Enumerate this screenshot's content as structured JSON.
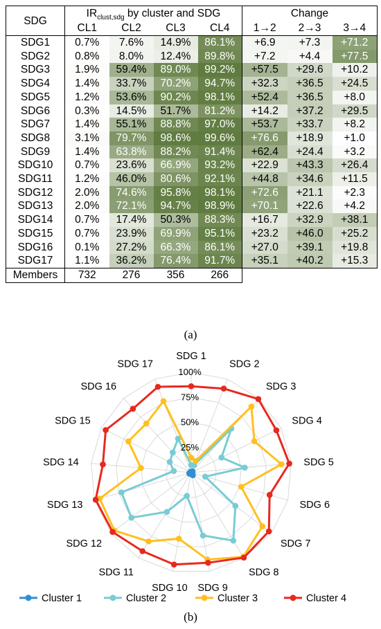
{
  "panel_a_label": "(a)",
  "panel_b_label": "(b)",
  "chart_data": [
    {
      "type": "table",
      "headers": {
        "sdg": "SDG",
        "ir_main": "IR",
        "ir_sub": "clust,sdg",
        "ir_rest": " by cluster and SDG",
        "change": "Change",
        "clusters": [
          "CL1",
          "CL2",
          "CL3",
          "CL4"
        ],
        "changes": [
          "1→2",
          "2→3",
          "3→4"
        ]
      },
      "rows": [
        {
          "sdg": "SDG1",
          "cl": [
            "0.7%",
            "7.6%",
            "14.9%",
            "86.1%"
          ],
          "v": [
            0.7,
            7.6,
            14.9,
            86.1
          ],
          "ch": [
            "+6.9",
            "+7.3",
            "+71.2"
          ],
          "cv": [
            6.9,
            7.3,
            71.2
          ]
        },
        {
          "sdg": "SDG2",
          "cl": [
            "0.8%",
            "8.0%",
            "12.4%",
            "89.8%"
          ],
          "v": [
            0.8,
            8.0,
            12.4,
            89.8
          ],
          "ch": [
            "+7.2",
            "+4.4",
            "+77.5"
          ],
          "cv": [
            7.2,
            4.4,
            77.5
          ]
        },
        {
          "sdg": "SDG3",
          "cl": [
            "1.9%",
            "59.4%",
            "89.0%",
            "99.2%"
          ],
          "v": [
            1.9,
            59.4,
            89.0,
            99.2
          ],
          "ch": [
            "+57.5",
            "+29.6",
            "+10.2"
          ],
          "cv": [
            57.5,
            29.6,
            10.2
          ]
        },
        {
          "sdg": "SDG4",
          "cl": [
            "1.4%",
            "33.7%",
            "70.2%",
            "94.7%"
          ],
          "v": [
            1.4,
            33.7,
            70.2,
            94.7
          ],
          "ch": [
            "+32.3",
            "+36.5",
            "+24.5"
          ],
          "cv": [
            32.3,
            36.5,
            24.5
          ]
        },
        {
          "sdg": "SDG5",
          "cl": [
            "1.2%",
            "53.6%",
            "90.2%",
            "98.1%"
          ],
          "v": [
            1.2,
            53.6,
            90.2,
            98.1
          ],
          "ch": [
            "+52.4",
            "+36.5",
            "+8.0"
          ],
          "cv": [
            52.4,
            36.5,
            8.0
          ]
        },
        {
          "sdg": "SDG6",
          "cl": [
            "0.3%",
            "14.5%",
            "51.7%",
            "81.2%"
          ],
          "v": [
            0.3,
            14.5,
            51.7,
            81.2
          ],
          "ch": [
            "+14.2",
            "+37.2",
            "+29.5"
          ],
          "cv": [
            14.2,
            37.2,
            29.5
          ]
        },
        {
          "sdg": "SDG7",
          "cl": [
            "1.4%",
            "55.1%",
            "88.8%",
            "97.0%"
          ],
          "v": [
            1.4,
            55.1,
            88.8,
            97.0
          ],
          "ch": [
            "+53.7",
            "+33.7",
            "+8.2"
          ],
          "cv": [
            53.7,
            33.7,
            8.2
          ]
        },
        {
          "sdg": "SDG8",
          "cl": [
            "3.1%",
            "79.7%",
            "98.6%",
            "99.6%"
          ],
          "v": [
            3.1,
            79.7,
            98.6,
            99.6
          ],
          "ch": [
            "+76.6",
            "+18.9",
            "+1.0"
          ],
          "cv": [
            76.6,
            18.9,
            1.0
          ]
        },
        {
          "sdg": "SDG9",
          "cl": [
            "1.4%",
            "63.8%",
            "88.2%",
            "91.4%"
          ],
          "v": [
            1.4,
            63.8,
            88.2,
            91.4
          ],
          "ch": [
            "+62.4",
            "+24.4",
            "+3.2"
          ],
          "cv": [
            62.4,
            24.4,
            3.2
          ]
        },
        {
          "sdg": "SDG10",
          "cl": [
            "0.7%",
            "23.6%",
            "66.9%",
            "93.2%"
          ],
          "v": [
            0.7,
            23.6,
            66.9,
            93.2
          ],
          "ch": [
            "+22.9",
            "+43.3",
            "+26.4"
          ],
          "cv": [
            22.9,
            43.3,
            26.4
          ]
        },
        {
          "sdg": "SDG11",
          "cl": [
            "1.2%",
            "46.0%",
            "80.6%",
            "92.1%"
          ],
          "v": [
            1.2,
            46.0,
            80.6,
            92.1
          ],
          "ch": [
            "+44.8",
            "+34.6",
            "+11.5"
          ],
          "cv": [
            44.8,
            34.6,
            11.5
          ]
        },
        {
          "sdg": "SDG12",
          "cl": [
            "2.0%",
            "74.6%",
            "95.8%",
            "98.1%"
          ],
          "v": [
            2.0,
            74.6,
            95.8,
            98.1
          ],
          "ch": [
            "+72.6",
            "+21.1",
            "+2.3"
          ],
          "cv": [
            72.6,
            21.1,
            2.3
          ]
        },
        {
          "sdg": "SDG13",
          "cl": [
            "2.0%",
            "72.1%",
            "94.7%",
            "98.9%"
          ],
          "v": [
            2.0,
            72.1,
            94.7,
            98.9
          ],
          "ch": [
            "+70.1",
            "+22.6",
            "+4.2"
          ],
          "cv": [
            70.1,
            22.6,
            4.2
          ]
        },
        {
          "sdg": "SDG14",
          "cl": [
            "0.7%",
            "17.4%",
            "50.3%",
            "88.3%"
          ],
          "v": [
            0.7,
            17.4,
            50.3,
            88.3
          ],
          "ch": [
            "+16.7",
            "+32.9",
            "+38.1"
          ],
          "cv": [
            16.7,
            32.9,
            38.1
          ]
        },
        {
          "sdg": "SDG15",
          "cl": [
            "0.7%",
            "23.9%",
            "69.9%",
            "95.1%"
          ],
          "v": [
            0.7,
            23.9,
            69.9,
            95.1
          ],
          "ch": [
            "+23.2",
            "+46.0",
            "+25.2"
          ],
          "cv": [
            23.2,
            46.0,
            25.2
          ]
        },
        {
          "sdg": "SDG16",
          "cl": [
            "0.1%",
            "27.2%",
            "66.3%",
            "86.1%"
          ],
          "v": [
            0.1,
            27.2,
            66.3,
            86.1
          ],
          "ch": [
            "+27.0",
            "+39.1",
            "+19.8"
          ],
          "cv": [
            27.0,
            39.1,
            19.8
          ]
        },
        {
          "sdg": "SDG17",
          "cl": [
            "1.1%",
            "36.2%",
            "76.4%",
            "91.7%"
          ],
          "v": [
            1.1,
            36.2,
            76.4,
            91.7
          ],
          "ch": [
            "+35.1",
            "+40.2",
            "+15.3"
          ],
          "cv": [
            35.1,
            40.2,
            15.3
          ]
        }
      ],
      "members": {
        "label": "Members",
        "values": [
          "732",
          "276",
          "356",
          "266"
        ]
      },
      "colors": {
        "low": "#ffffff",
        "high": "#5e7a3a"
      }
    },
    {
      "type": "radar",
      "categories": [
        "SDG 1",
        "SDG 2",
        "SDG 3",
        "SDG 4",
        "SDG 5",
        "SDG 6",
        "SDG 7",
        "SDG 8",
        "SDG 9",
        "SDG 10",
        "SDG 11",
        "SDG 12",
        "SDG 13",
        "SDG 14",
        "SDG 15",
        "SDG 16",
        "SDG 17"
      ],
      "ticks": [
        "25%",
        "50%",
        "75%",
        "100%"
      ],
      "tick_values": [
        25,
        50,
        75,
        100
      ],
      "range": [
        0,
        100
      ],
      "grid": true,
      "legend_position": "bottom",
      "series": [
        {
          "name": "Cluster 1",
          "color": "#2e8fd4",
          "values": [
            0.7,
            0.8,
            1.9,
            1.4,
            1.2,
            0.3,
            1.4,
            3.1,
            1.4,
            0.7,
            1.2,
            2.0,
            2.0,
            0.7,
            0.7,
            0.1,
            1.1
          ]
        },
        {
          "name": "Cluster 2",
          "color": "#78ccd4",
          "values": [
            7.6,
            8.0,
            59.4,
            33.7,
            53.6,
            14.5,
            55.1,
            79.7,
            63.8,
            23.6,
            46.0,
            74.6,
            72.1,
            17.4,
            23.9,
            27.2,
            36.2
          ]
        },
        {
          "name": "Cluster 3",
          "color": "#ffbf1f",
          "values": [
            14.9,
            12.4,
            89.0,
            70.2,
            90.2,
            51.7,
            88.8,
            98.6,
            88.2,
            66.9,
            80.6,
            95.8,
            94.7,
            50.3,
            69.9,
            66.3,
            76.4
          ]
        },
        {
          "name": "Cluster 4",
          "color": "#e8281e",
          "values": [
            86.1,
            89.8,
            99.2,
            94.7,
            98.1,
            81.2,
            97.0,
            99.6,
            91.4,
            93.2,
            92.1,
            98.1,
            98.9,
            88.3,
            95.1,
            86.1,
            91.7
          ]
        }
      ]
    }
  ]
}
